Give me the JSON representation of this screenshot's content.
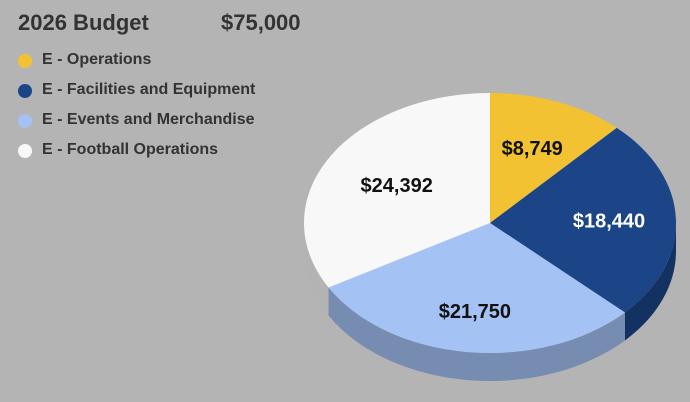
{
  "header": {
    "title": "2026 Budget",
    "total": "$75,000"
  },
  "chart_data": {
    "type": "pie",
    "style": "3d",
    "legend_position": "top-left",
    "slices": [
      {
        "name": "E - Operations",
        "value": 8749,
        "label": "$8,749",
        "color": "#f2c232",
        "label_color": "#111111"
      },
      {
        "name": "E - Facilities and Equipment",
        "value": 18440,
        "label": "$18,440",
        "color": "#1c4587",
        "label_color": "#ffffff"
      },
      {
        "name": "E - Events and Merchandise",
        "value": 21750,
        "label": "$21,750",
        "color": "#a4c2f4",
        "label_color": "#111111"
      },
      {
        "name": "E - Football Operations",
        "value": 24392,
        "label": "$24,392",
        "color": "#f8f8f8",
        "label_color": "#111111"
      }
    ]
  }
}
